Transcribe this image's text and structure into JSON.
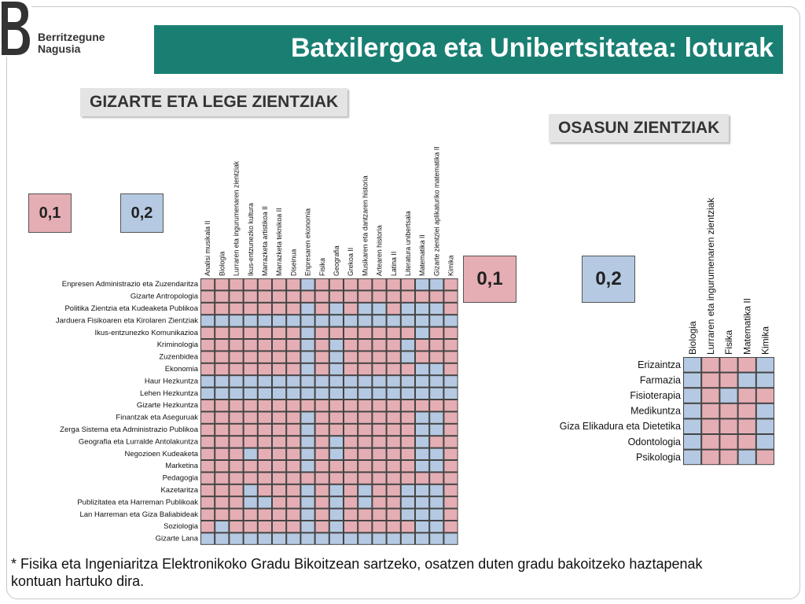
{
  "logo": {
    "letter": "B",
    "line1": "Berritzegune",
    "line2": "Nagusia"
  },
  "title": "Batxilergoa eta Unibertsitatea: loturak",
  "colors": {
    "pink": "#e5aeb4",
    "blue": "#b5c9e2",
    "title_bg": "#1a7f73"
  },
  "social": {
    "heading": "GIZARTE ETA LEGE ZIENTZIAK",
    "legend": {
      "pink_label": "0,1",
      "blue_label": "0,2"
    },
    "subjects": [
      "Analisi musikala II",
      "Biologia",
      "Lurraren eta ingurumenaren zientziak",
      "Ikus-entzunezko kultura",
      "Marrazketa artistikoa II",
      "Marrazketa teknikoa II",
      "Diseinua",
      "Enpresaren ekonomia",
      "Fisika",
      "Geografia",
      "Grekoa II",
      "Musikaren eta dantzaren historia",
      "Artearen historia",
      "Latina II",
      "Literatura unibertsala",
      "Matematika II",
      "Gizarte zientziei aplikaturiko matematika II",
      "Kimika"
    ],
    "degrees": [
      "Enpresen Administrazio eta Zuzendaritza",
      "Gizarte Antropologia",
      "Politika Zientzia eta Kudeaketa Publikoa",
      "Jarduera Fisikoaren eta Kirolaren Zientziak",
      "Ikus-entzunezko Komunikazioa",
      "Kriminologia",
      "Zuzenbidea",
      "Ekonomia",
      "Haur Hezkuntza",
      "Lehen Hezkuntza",
      "Gizarte Hezkuntza",
      "Finantzak eta Aseguruak",
      "Zerga Sistema eta Administrazio Publikoa",
      "Geografia eta Lurralde Antolakuntza",
      "Negozioen Kudeaketa",
      "Marketina",
      "Pedagogia",
      "Kazetaritza",
      "Publizitatea eta Harreman Publikoak",
      "Lan Harreman eta Giza Baliabideak",
      "Soziologia",
      "Gizarte Lana"
    ],
    "matrix": [
      "PPPPPPPBPPPPPPPBBP",
      "PPPPPPPPPPPPPPPPPP",
      "PPPPPPPBPBPBBPBBBP",
      "BBBBBBBBBBBBBBBBBB",
      "PPPPPPPBPPPPPPPBPP",
      "PPPPPPPBPBPPPPBPPP",
      "PPPPPPPBPBPPPPBPPP",
      "PPPPPPPBPBPPPPPBBP",
      "BBBBBBBBBBBBBBBBBB",
      "BBBBBBBBBBBBBBBBBB",
      "PPPPPPPPPPPPPPPPPP",
      "PPPPPPPBPPPPPPPBBP",
      "PPPPPPPBPPPPPPPBBP",
      "PPPPPPPBPBPPPPPBPP",
      "PPPBPPPBPBPPPPPBBP",
      "PPPPPPPBPPPPPPPBBP",
      "PPPPPPPPPPPPPPPPPP",
      "PPPBPPPBPBPBPPBBBP",
      "PPPBBPPBPBPBPPBBBP",
      "PPPPPPPBPBPPPPBBBP",
      "PBPPPPPBPBPPPPPBBP",
      "BBBBBBBBBBBBBBBBBB"
    ]
  },
  "health": {
    "heading": "OSASUN ZIENTZIAK",
    "legend": {
      "pink_label": "0,1",
      "blue_label": "0,2"
    },
    "subjects": [
      "Biologia",
      "Lurraren eta ingurumenaren zientziak",
      "Fisika",
      "Matematika II",
      "Kimika"
    ],
    "degrees": [
      "Erizaintza",
      "Farmazia",
      "Fisioterapia",
      "Medikuntza",
      "Giza Elikadura eta Dietetika",
      "Odontologia",
      "Psikologia"
    ],
    "matrix": [
      "BPPPB",
      "BPPBB",
      "BPBPP",
      "BPPPB",
      "BPPPB",
      "BPPPB",
      "BPPBP"
    ]
  },
  "footnote": "* Fisika eta Ingeniaritza Elektronikoko Gradu Bikoitzean sartzeko, osatzen duten gradu bakoitzeko haztapenak kontuan hartuko dira."
}
